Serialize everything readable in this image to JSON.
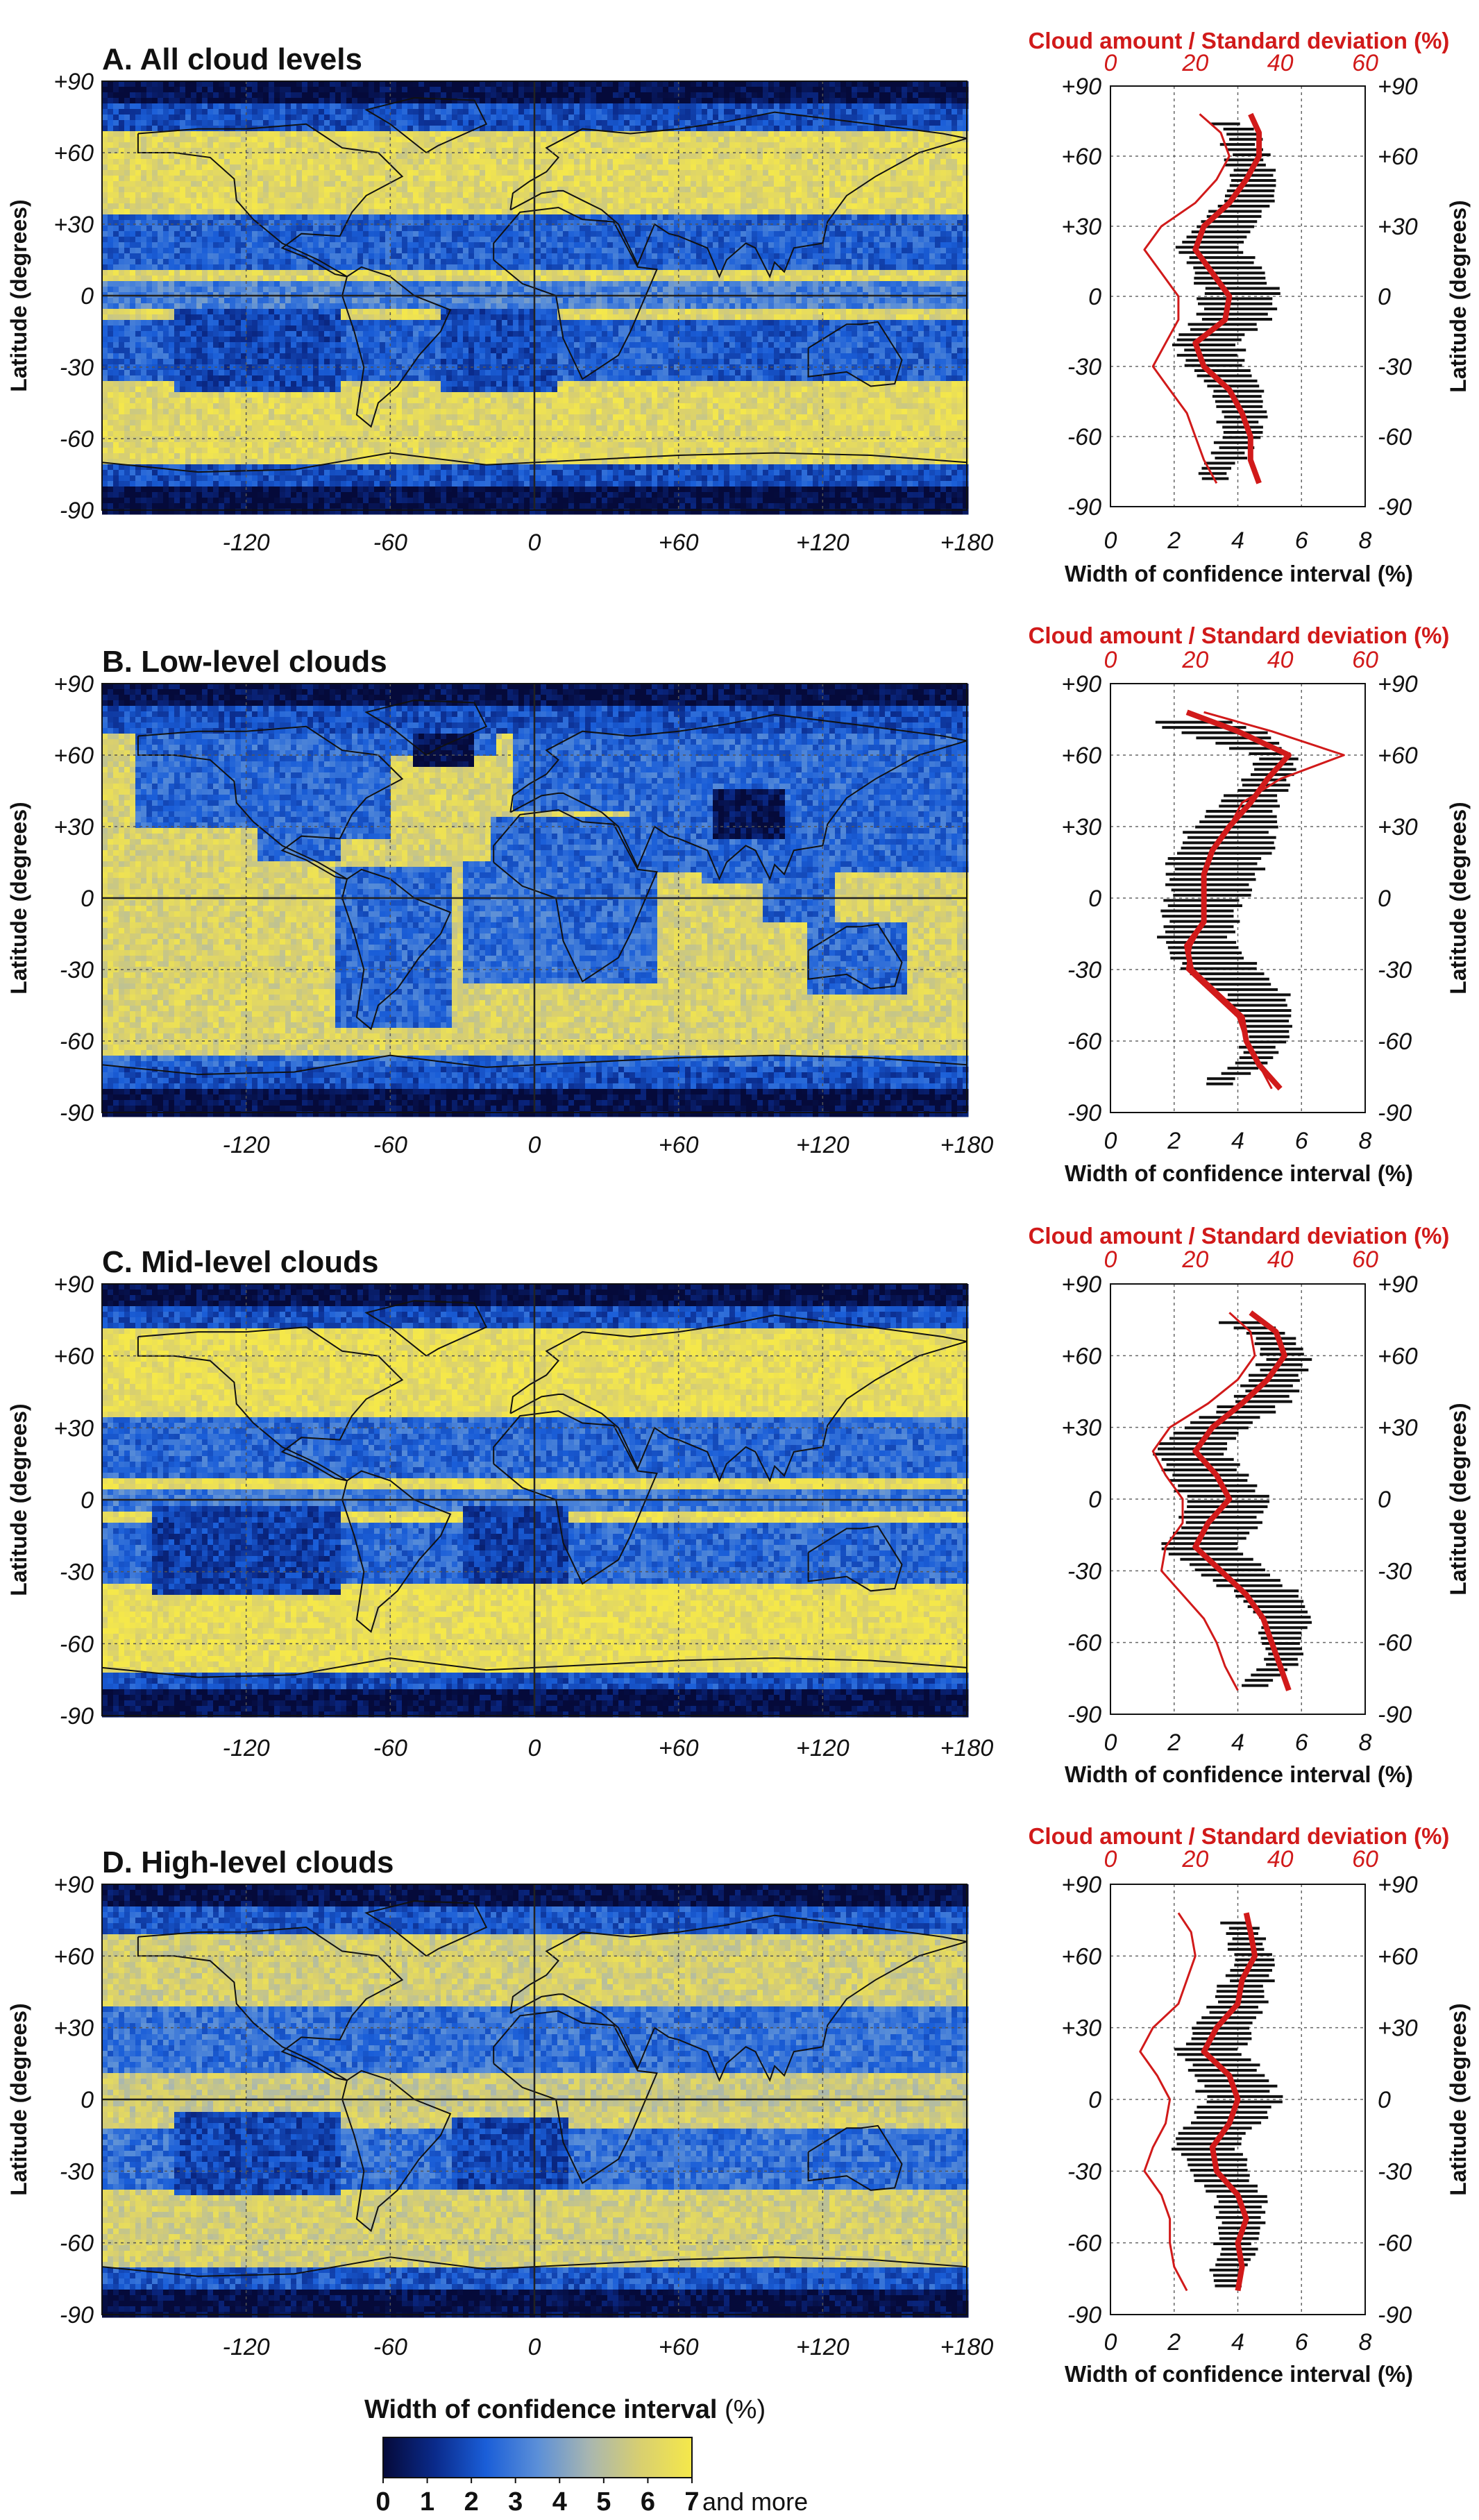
{
  "colors": {
    "accent_red": "#d11a1a",
    "colormap": [
      "#050a3a",
      "#0a2a8a",
      "#1a5ed8",
      "#5b8fd8",
      "#a8b6b0",
      "#d8cf70",
      "#f5e84a"
    ]
  },
  "legend": {
    "label_main": "Width of confidence interval",
    "label_unit": "(%)",
    "ticks": [
      "0",
      "1",
      "2",
      "3",
      "4",
      "5",
      "6",
      "7"
    ],
    "tick_suffix": "and more"
  },
  "panels": [
    {
      "title": "A. All cloud levels"
    },
    {
      "title": "B. Low-level clouds"
    },
    {
      "title": "C. Mid-level clouds"
    },
    {
      "title": "D. High-level clouds"
    }
  ],
  "map_axes": {
    "ylabel": "Latitude (degrees)",
    "lat_ticks": [
      "+90",
      "+60",
      "+30",
      "0",
      "-30",
      "-60",
      "-90"
    ],
    "lon_ticks": [
      "-120",
      "-60",
      "0",
      "+60",
      "+120",
      "+180"
    ]
  },
  "profile_axes": {
    "top_label": "Cloud amount / Standard deviation",
    "top_unit": "(%)",
    "top_ticks": [
      "0",
      "20",
      "40",
      "60"
    ],
    "bottom_label": "Width of confidence interval (%)",
    "bottom_ticks": [
      "0",
      "2",
      "4",
      "6",
      "8"
    ],
    "right_label": "Latitude (degrees)",
    "lat_ticks": [
      "+90",
      "+60",
      "+30",
      "0",
      "-30",
      "-60",
      "-90"
    ]
  },
  "chart_data": [
    {
      "type": "line",
      "title": "A. All cloud levels",
      "xlabel": "Width of confidence interval (%)",
      "x2label": "Cloud amount / Standard deviation (%)",
      "ylabel": "Latitude (degrees)",
      "xlim": [
        0,
        8
      ],
      "x2lim": [
        0,
        60
      ],
      "ylim": [
        -90,
        90
      ],
      "lat": [
        -80,
        -70,
        -60,
        -50,
        -40,
        -30,
        -20,
        -10,
        0,
        10,
        20,
        30,
        40,
        50,
        60,
        70,
        78
      ],
      "ci_width": [
        3.0,
        3.7,
        4.0,
        4.1,
        4.0,
        3.4,
        3.0,
        3.8,
        4.1,
        3.8,
        3.1,
        3.6,
        4.2,
        4.4,
        4.3,
        4.0,
        3.3
      ],
      "ci_spread": [
        0.4,
        0.5,
        0.6,
        0.7,
        0.8,
        0.9,
        1.0,
        1.1,
        1.2,
        1.1,
        1.0,
        0.9,
        0.8,
        0.7,
        0.6,
        0.5,
        0.4
      ],
      "series": [
        {
          "values": [
            35,
            33,
            33,
            31,
            28,
            22,
            20,
            27,
            28,
            24,
            20,
            22,
            28,
            32,
            35,
            35,
            33
          ]
        },
        {
          "values": [
            25,
            22,
            20,
            18,
            14,
            10,
            13,
            16,
            16,
            12,
            8,
            12,
            20,
            25,
            28,
            26,
            21
          ]
        }
      ]
    },
    {
      "type": "line",
      "title": "B. Low-level clouds",
      "xlabel": "Width of confidence interval (%)",
      "x2label": "Cloud amount / Standard deviation (%)",
      "ylabel": "Latitude (degrees)",
      "xlim": [
        0,
        8
      ],
      "x2lim": [
        0,
        60
      ],
      "ylim": [
        -90,
        90
      ],
      "lat": [
        -80,
        -70,
        -60,
        -50,
        -40,
        -30,
        -20,
        -10,
        0,
        10,
        20,
        30,
        40,
        50,
        60,
        70,
        78
      ],
      "ci_width": [
        3.0,
        4.3,
        4.8,
        4.9,
        4.5,
        3.5,
        2.7,
        2.8,
        3.0,
        3.2,
        3.5,
        3.8,
        4.3,
        5.0,
        5.2,
        3.5,
        1.5
      ],
      "ci_spread": [
        0.4,
        0.5,
        0.6,
        0.8,
        1.0,
        1.2,
        1.1,
        1.1,
        1.2,
        1.4,
        1.5,
        1.3,
        0.9,
        0.7,
        0.6,
        1.4,
        1.0
      ],
      "series": [
        {
          "values": [
            40,
            35,
            32,
            31,
            25,
            19,
            18,
            22,
            22,
            22,
            24,
            28,
            33,
            37,
            42,
            30,
            18
          ]
        },
        {
          "values": [
            38,
            35,
            32,
            30,
            24,
            18,
            19,
            22,
            22,
            22,
            24,
            28,
            31,
            40,
            55,
            38,
            22
          ]
        }
      ]
    },
    {
      "type": "line",
      "title": "C. Mid-level clouds",
      "xlabel": "Width of confidence interval (%)",
      "x2label": "Cloud amount / Standard deviation (%)",
      "ylabel": "Latitude (degrees)",
      "xlim": [
        0,
        8
      ],
      "x2lim": [
        0,
        60
      ],
      "ylim": [
        -90,
        90
      ],
      "lat": [
        -80,
        -70,
        -60,
        -50,
        -40,
        -30,
        -20,
        -10,
        0,
        10,
        20,
        30,
        40,
        50,
        60,
        70,
        78
      ],
      "ci_width": [
        4.5,
        5.2,
        5.5,
        5.4,
        4.9,
        3.8,
        2.8,
        3.5,
        3.6,
        3.1,
        2.4,
        3.3,
        4.6,
        5.2,
        5.5,
        5.0,
        3.5
      ],
      "ci_spread": [
        0.4,
        0.5,
        0.6,
        0.8,
        1.0,
        1.1,
        1.2,
        1.2,
        1.3,
        1.2,
        1.1,
        1.0,
        0.9,
        0.8,
        0.7,
        0.6,
        0.9
      ],
      "series": [
        {
          "values": [
            42,
            40,
            38,
            36,
            32,
            26,
            20,
            23,
            28,
            25,
            20,
            24,
            31,
            37,
            41,
            39,
            33
          ]
        },
        {
          "values": [
            30,
            27,
            25,
            22,
            17,
            12,
            13,
            17,
            17,
            13,
            10,
            14,
            23,
            30,
            34,
            33,
            28
          ]
        }
      ]
    },
    {
      "type": "line",
      "title": "D. High-level clouds",
      "xlabel": "Width of confidence interval (%)",
      "x2label": "Cloud amount / Standard deviation (%)",
      "ylabel": "Latitude (degrees)",
      "xlim": [
        0,
        8
      ],
      "x2lim": [
        0,
        60
      ],
      "ylim": [
        -90,
        90
      ],
      "lat": [
        -80,
        -70,
        -60,
        -50,
        -40,
        -30,
        -20,
        -10,
        0,
        10,
        20,
        30,
        40,
        50,
        60,
        70,
        78
      ],
      "ci_width": [
        3.5,
        3.8,
        4.0,
        4.1,
        4.0,
        3.4,
        3.0,
        3.6,
        4.1,
        3.8,
        3.1,
        3.5,
        4.0,
        4.3,
        4.4,
        4.2,
        3.6
      ],
      "ci_spread": [
        0.4,
        0.5,
        0.6,
        0.7,
        0.8,
        0.9,
        1.0,
        1.1,
        1.2,
        1.1,
        1.0,
        0.9,
        0.8,
        0.7,
        0.6,
        0.5,
        0.4
      ],
      "series": [
        {
          "values": [
            30,
            31,
            30,
            32,
            30,
            25,
            24,
            28,
            30,
            28,
            22,
            25,
            30,
            31,
            34,
            33,
            32
          ]
        },
        {
          "values": [
            18,
            15,
            14,
            14,
            12,
            8,
            10,
            13,
            14,
            11,
            7,
            10,
            16,
            18,
            20,
            19,
            16
          ]
        }
      ]
    }
  ]
}
